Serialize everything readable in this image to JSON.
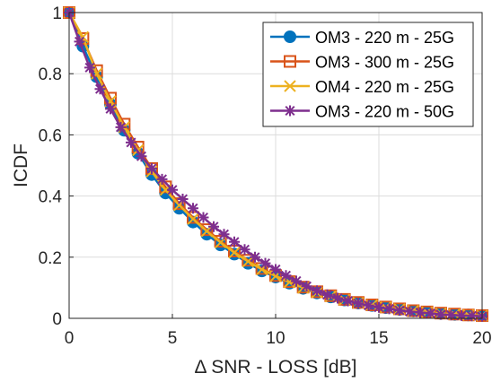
{
  "chart_data": {
    "type": "line",
    "xlabel": "Δ SNR - LOSS [dB]",
    "ylabel": "ICDF",
    "xlim": [
      0,
      20
    ],
    "ylim": [
      0,
      1
    ],
    "xticks": [
      0,
      5,
      10,
      15,
      20
    ],
    "yticks": [
      0,
      0.2,
      0.4,
      0.6,
      0.8,
      1
    ],
    "grid": true,
    "legend_position": "top-right",
    "series": [
      {
        "name": "OM3 - 220 m - 25G",
        "color": "#0072BD",
        "marker": "circle",
        "x": [
          0,
          0.667,
          1.333,
          2,
          2.667,
          3.333,
          4,
          4.667,
          5.333,
          6,
          6.667,
          7.333,
          8,
          8.667,
          9.333,
          10,
          10.667,
          11.333,
          12,
          12.667,
          13.333,
          14,
          14.667,
          15.333,
          16,
          16.667,
          17.333,
          18,
          18.667,
          19.333,
          20
        ],
        "y": [
          1.0,
          0.89,
          0.79,
          0.7,
          0.615,
          0.54,
          0.47,
          0.41,
          0.36,
          0.315,
          0.275,
          0.24,
          0.21,
          0.18,
          0.155,
          0.135,
          0.115,
          0.098,
          0.083,
          0.07,
          0.06,
          0.05,
          0.042,
          0.035,
          0.029,
          0.024,
          0.02,
          0.016,
          0.013,
          0.011,
          0.009
        ]
      },
      {
        "name": "OM3 - 300 m - 25G",
        "color": "#D95319",
        "marker": "square",
        "x": [
          0,
          0.667,
          1.333,
          2,
          2.667,
          3.333,
          4,
          4.667,
          5.333,
          6,
          6.667,
          7.333,
          8,
          8.667,
          9.333,
          10,
          10.667,
          11.333,
          12,
          12.667,
          13.333,
          14,
          14.667,
          15.333,
          16,
          16.667,
          17.333,
          18,
          18.667,
          19.333,
          20
        ],
        "y": [
          1.0,
          0.915,
          0.81,
          0.72,
          0.635,
          0.56,
          0.49,
          0.43,
          0.375,
          0.33,
          0.29,
          0.252,
          0.22,
          0.19,
          0.163,
          0.14,
          0.12,
          0.102,
          0.087,
          0.074,
          0.062,
          0.052,
          0.044,
          0.037,
          0.031,
          0.025,
          0.021,
          0.017,
          0.014,
          0.011,
          0.009
        ]
      },
      {
        "name": "OM4 - 220 m - 25G",
        "color": "#EDB120",
        "marker": "x",
        "x": [
          0,
          0.667,
          1.333,
          2,
          2.667,
          3.333,
          4,
          4.667,
          5.333,
          6,
          6.667,
          7.333,
          8,
          8.667,
          9.333,
          10,
          10.667,
          11.333,
          12,
          12.667,
          13.333,
          14,
          14.667,
          15.333,
          16,
          16.667,
          17.333,
          18,
          18.667,
          19.333,
          20
        ],
        "y": [
          1.0,
          0.92,
          0.8,
          0.71,
          0.625,
          0.55,
          0.48,
          0.42,
          0.37,
          0.325,
          0.285,
          0.248,
          0.215,
          0.186,
          0.16,
          0.138,
          0.118,
          0.1,
          0.085,
          0.072,
          0.061,
          0.051,
          0.043,
          0.036,
          0.03,
          0.025,
          0.02,
          0.016,
          0.013,
          0.011,
          0.009
        ]
      },
      {
        "name": "OM3 - 220 m - 50G",
        "color": "#7E2F8E",
        "marker": "asterisk",
        "x": [
          0,
          0.5,
          1,
          1.5,
          2,
          2.5,
          3,
          3.5,
          4,
          4.5,
          5,
          5.5,
          6,
          6.5,
          7,
          7.5,
          8,
          8.5,
          9,
          9.5,
          10,
          10.5,
          11,
          11.5,
          12,
          12.5,
          13,
          13.5,
          14,
          14.5,
          15,
          15.5,
          16,
          16.5,
          17,
          17.5,
          18,
          18.5,
          19,
          19.5,
          20
        ],
        "y": [
          1.0,
          0.905,
          0.82,
          0.75,
          0.685,
          0.625,
          0.575,
          0.53,
          0.49,
          0.455,
          0.42,
          0.39,
          0.36,
          0.33,
          0.3,
          0.275,
          0.25,
          0.225,
          0.2,
          0.18,
          0.16,
          0.14,
          0.122,
          0.105,
          0.09,
          0.077,
          0.066,
          0.057,
          0.049,
          0.042,
          0.036,
          0.031,
          0.026,
          0.022,
          0.019,
          0.016,
          0.013,
          0.011,
          0.009,
          0.008,
          0.007
        ]
      }
    ]
  }
}
